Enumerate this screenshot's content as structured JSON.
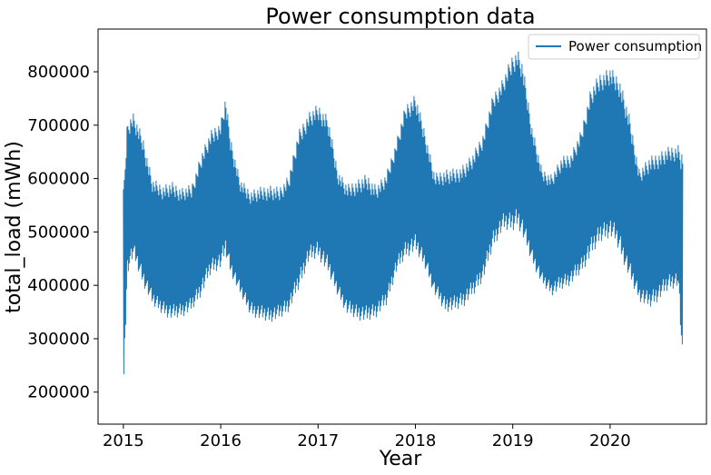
{
  "chart_data": {
    "type": "line",
    "title": "Power consumption data",
    "xlabel": "Year",
    "ylabel": "total_load (mWh)",
    "xlim": [
      2014.74,
      2020.99
    ],
    "ylim": [
      140000,
      880000
    ],
    "x_ticks": [
      2015,
      2016,
      2017,
      2018,
      2019,
      2020
    ],
    "x_tick_labels": [
      "2015",
      "2016",
      "2017",
      "2018",
      "2019",
      "2020"
    ],
    "y_ticks": [
      200000,
      300000,
      400000,
      500000,
      600000,
      700000,
      800000
    ],
    "y_tick_labels": [
      "200000",
      "300000",
      "400000",
      "500000",
      "600000",
      "700000",
      "800000"
    ],
    "grid": false,
    "legend": {
      "position": "top-right",
      "entries": [
        "Power consumption"
      ]
    },
    "series": [
      {
        "name": "Power consumption",
        "color": "#1f77b4",
        "envelope": {
          "x": [
            2015.0,
            2015.04,
            2015.1,
            2015.2,
            2015.3,
            2015.4,
            2015.5,
            2015.6,
            2015.7,
            2015.8,
            2015.9,
            2016.0,
            2016.05,
            2016.1,
            2016.2,
            2016.3,
            2016.4,
            2016.5,
            2016.6,
            2016.7,
            2016.8,
            2016.9,
            2017.0,
            2017.1,
            2017.2,
            2017.3,
            2017.4,
            2017.5,
            2017.6,
            2017.7,
            2017.8,
            2017.9,
            2018.0,
            2018.1,
            2018.2,
            2018.3,
            2018.4,
            2018.5,
            2018.6,
            2018.7,
            2018.8,
            2018.9,
            2019.0,
            2019.05,
            2019.1,
            2019.2,
            2019.3,
            2019.4,
            2019.5,
            2019.6,
            2019.7,
            2019.8,
            2019.9,
            2020.0,
            2020.05,
            2020.1,
            2020.2,
            2020.3,
            2020.4,
            2020.5,
            2020.6,
            2020.7,
            2020.75
          ],
          "max": [
            580000,
            710000,
            725000,
            680000,
            600000,
            590000,
            595000,
            585000,
            590000,
            650000,
            690000,
            710000,
            755000,
            680000,
            600000,
            580000,
            585000,
            590000,
            585000,
            610000,
            690000,
            725000,
            740000,
            720000,
            620000,
            590000,
            600000,
            610000,
            590000,
            610000,
            670000,
            740000,
            760000,
            690000,
            610000,
            620000,
            620000,
            630000,
            650000,
            690000,
            760000,
            790000,
            835000,
            845000,
            820000,
            700000,
            620000,
            610000,
            640000,
            650000,
            690000,
            770000,
            800000,
            810000,
            800000,
            790000,
            720000,
            620000,
            640000,
            650000,
            660000,
            665000,
            650000
          ],
          "min": [
            175000,
            420000,
            450000,
            400000,
            360000,
            345000,
            335000,
            340000,
            350000,
            380000,
            420000,
            430000,
            455000,
            420000,
            380000,
            345000,
            335000,
            330000,
            335000,
            350000,
            390000,
            440000,
            450000,
            420000,
            380000,
            345000,
            335000,
            330000,
            340000,
            360000,
            420000,
            450000,
            460000,
            430000,
            380000,
            350000,
            350000,
            360000,
            380000,
            410000,
            470000,
            500000,
            500000,
            510000,
            490000,
            440000,
            400000,
            380000,
            390000,
            400000,
            420000,
            450000,
            480000,
            490000,
            480000,
            460000,
            410000,
            370000,
            355000,
            370000,
            390000,
            395000,
            220000
          ]
        }
      }
    ]
  }
}
